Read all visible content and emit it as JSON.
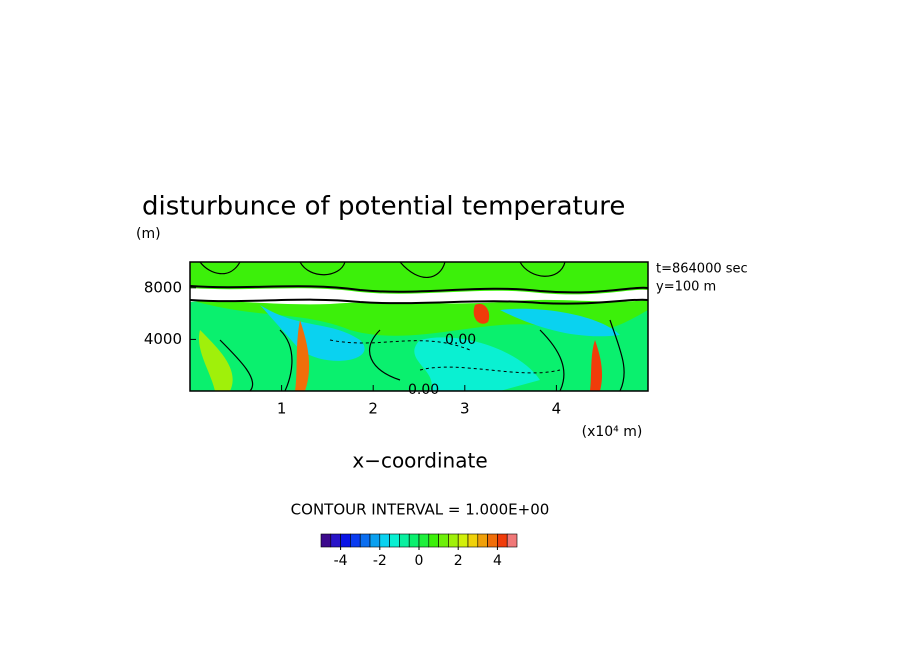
{
  "chart_data": {
    "type": "contour",
    "title": "disturbunce of potential temperature",
    "y_unit": "(m)",
    "x_label": "x−coordinate",
    "x_unit": "(x10⁴ m)",
    "annotations": [
      "t=864000 sec",
      "y=100 m"
    ],
    "contour_labels": [
      "0.00",
      "0.00"
    ],
    "contour_interval": "CONTOUR INTERVAL = 1.000E+00",
    "xlim": [
      0,
      5
    ],
    "xticks": [
      1,
      2,
      3,
      4
    ],
    "ylim": [
      0,
      10000
    ],
    "yticks": [
      4000,
      8000
    ],
    "colorbar": {
      "lim": [
        -5,
        5
      ],
      "ticks": [
        -4,
        -2,
        0,
        2,
        4
      ],
      "colors": [
        "#3c0a8c",
        "#2814c8",
        "#0a14e6",
        "#0a3cf0",
        "#0a6ef0",
        "#0aa0f0",
        "#0ad2f0",
        "#0af0d2",
        "#0af0a0",
        "#0af06e",
        "#1ef03c",
        "#3cf00a",
        "#6ef00a",
        "#a0f00a",
        "#d2f00a",
        "#f0d20a",
        "#f0a00a",
        "#f06e0a",
        "#f03c0a",
        "#f07878"
      ]
    }
  }
}
